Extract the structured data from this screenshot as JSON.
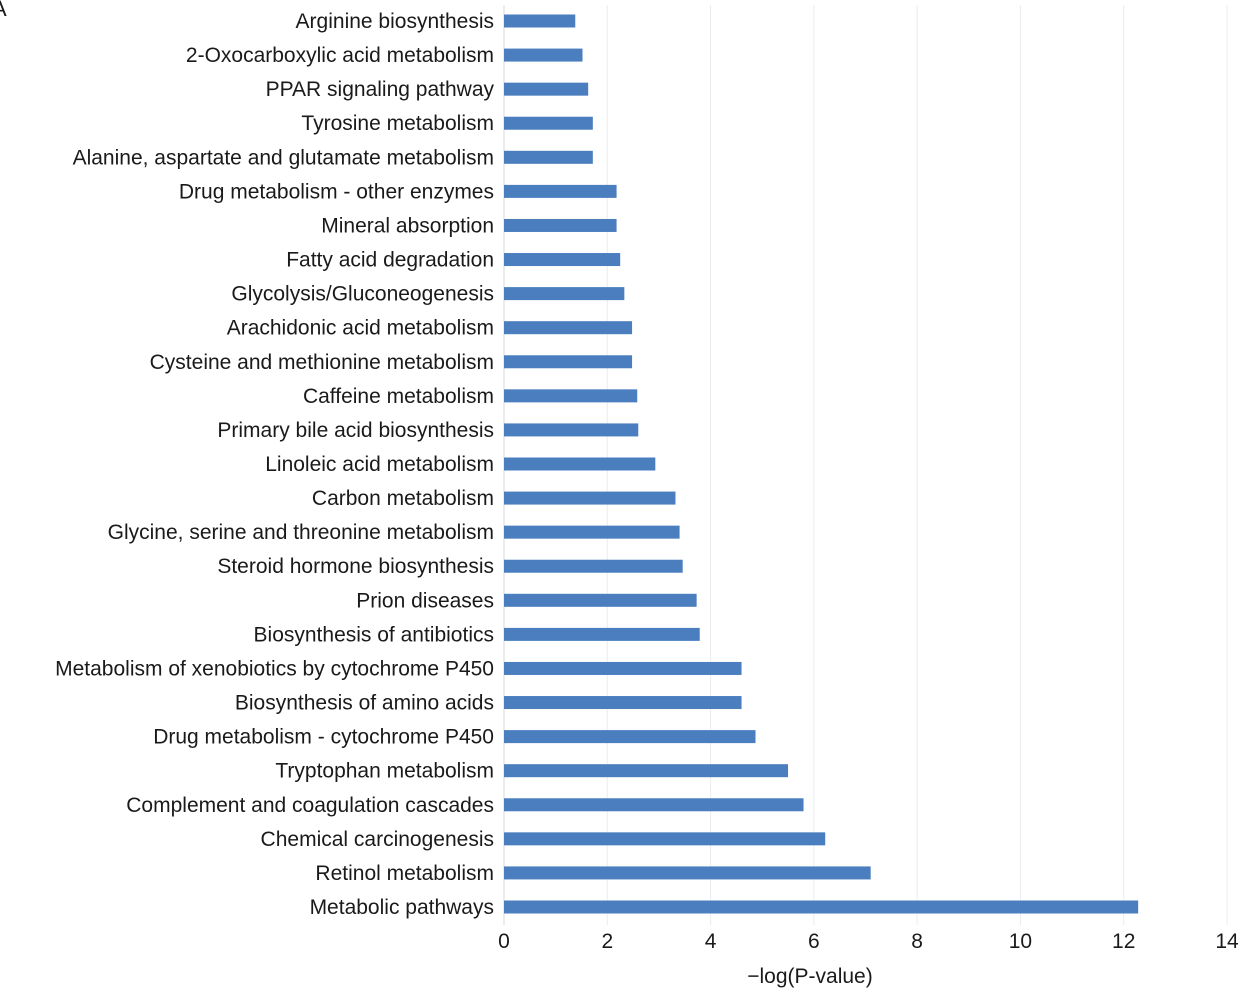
{
  "panel_label": "A",
  "colors": {
    "bar": "#4a7ebf",
    "grid": "#ececec"
  },
  "chart_data": {
    "type": "bar",
    "orientation": "horizontal",
    "title": "",
    "xlabel": "−log(P-value)",
    "ylabel": "",
    "xlim": [
      0,
      14
    ],
    "xticks": [
      0,
      2,
      4,
      6,
      8,
      10,
      12,
      14
    ],
    "grid": true,
    "legend": "none",
    "categories": [
      "Arginine biosynthesis",
      "2-Oxocarboxylic acid metabolism",
      "PPAR signaling pathway",
      "Tyrosine metabolism",
      "Alanine, aspartate and glutamate metabolism",
      "Drug metabolism - other enzymes",
      "Mineral absorption",
      "Fatty acid degradation",
      "Glycolysis/Gluconeogenesis",
      "Arachidonic acid metabolism",
      "Cysteine and methionine metabolism",
      "Caffeine metabolism",
      "Primary bile acid biosynthesis",
      "Linoleic acid metabolism",
      "Carbon metabolism",
      "Glycine, serine and threonine metabolism",
      "Steroid hormone biosynthesis",
      "Prion diseases",
      "Biosynthesis of antibiotics",
      "Metabolism of xenobiotics by cytochrome P450",
      "Biosynthesis of amino acids",
      "Drug metabolism - cytochrome P450",
      "Tryptophan metabolism",
      "Complement and coagulation cascades",
      "Chemical carcinogenesis",
      "Retinol metabolism",
      "Metabolic pathways"
    ],
    "values": [
      1.38,
      1.52,
      1.63,
      1.72,
      1.72,
      2.18,
      2.18,
      2.25,
      2.33,
      2.48,
      2.48,
      2.58,
      2.6,
      2.93,
      3.32,
      3.4,
      3.46,
      3.73,
      3.79,
      4.6,
      4.6,
      4.87,
      5.5,
      5.8,
      6.22,
      7.1,
      12.28
    ]
  }
}
